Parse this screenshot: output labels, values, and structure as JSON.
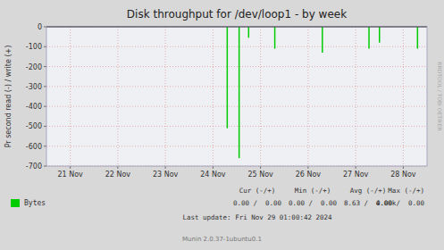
{
  "chart_data": {
    "type": "bar",
    "title": "Disk throughput for /dev/loop1 - by week",
    "y_label": "Pr second read (-) / write (+)",
    "x": [
      3.3,
      3.55,
      3.75,
      4.3,
      5.3,
      6.28,
      6.5,
      7.3
    ],
    "series": [
      {
        "name": "Bytes",
        "color": "#00cc00",
        "values": [
          -510,
          -660,
          -55,
          -110,
          -130,
          -110,
          -80,
          -110
        ]
      }
    ],
    "xlim": [
      -0.5,
      7.5
    ],
    "xticks": [
      {
        "value": 0,
        "label": "21 Nov"
      },
      {
        "value": 1,
        "label": "22 Nov"
      },
      {
        "value": 2,
        "label": "23 Nov"
      },
      {
        "value": 3,
        "label": "24 Nov"
      },
      {
        "value": 4,
        "label": "25 Nov"
      },
      {
        "value": 5,
        "label": "26 Nov"
      },
      {
        "value": 6,
        "label": "27 Nov"
      },
      {
        "value": 7,
        "label": "28 Nov"
      }
    ],
    "ylim": [
      -700,
      0
    ],
    "yticks": [
      0,
      -100,
      -200,
      -300,
      -400,
      -500,
      -600,
      -700
    ],
    "grid": true,
    "legend": "bottom",
    "annotations": [
      "RRDTOOL / TOBI OETIKER",
      "Cur (-/+)",
      "Min (-/+)",
      "Avg (-/+)",
      "Max (-/+)",
      "0.00 /  0.00",
      "0.00 /  0.00",
      "8.63 /  0.00",
      "4.00k/  0.00",
      "Last update: Fri Nov 29 01:00:42 2024",
      "Munin 2.0.37-1ubuntu0.1"
    ]
  }
}
